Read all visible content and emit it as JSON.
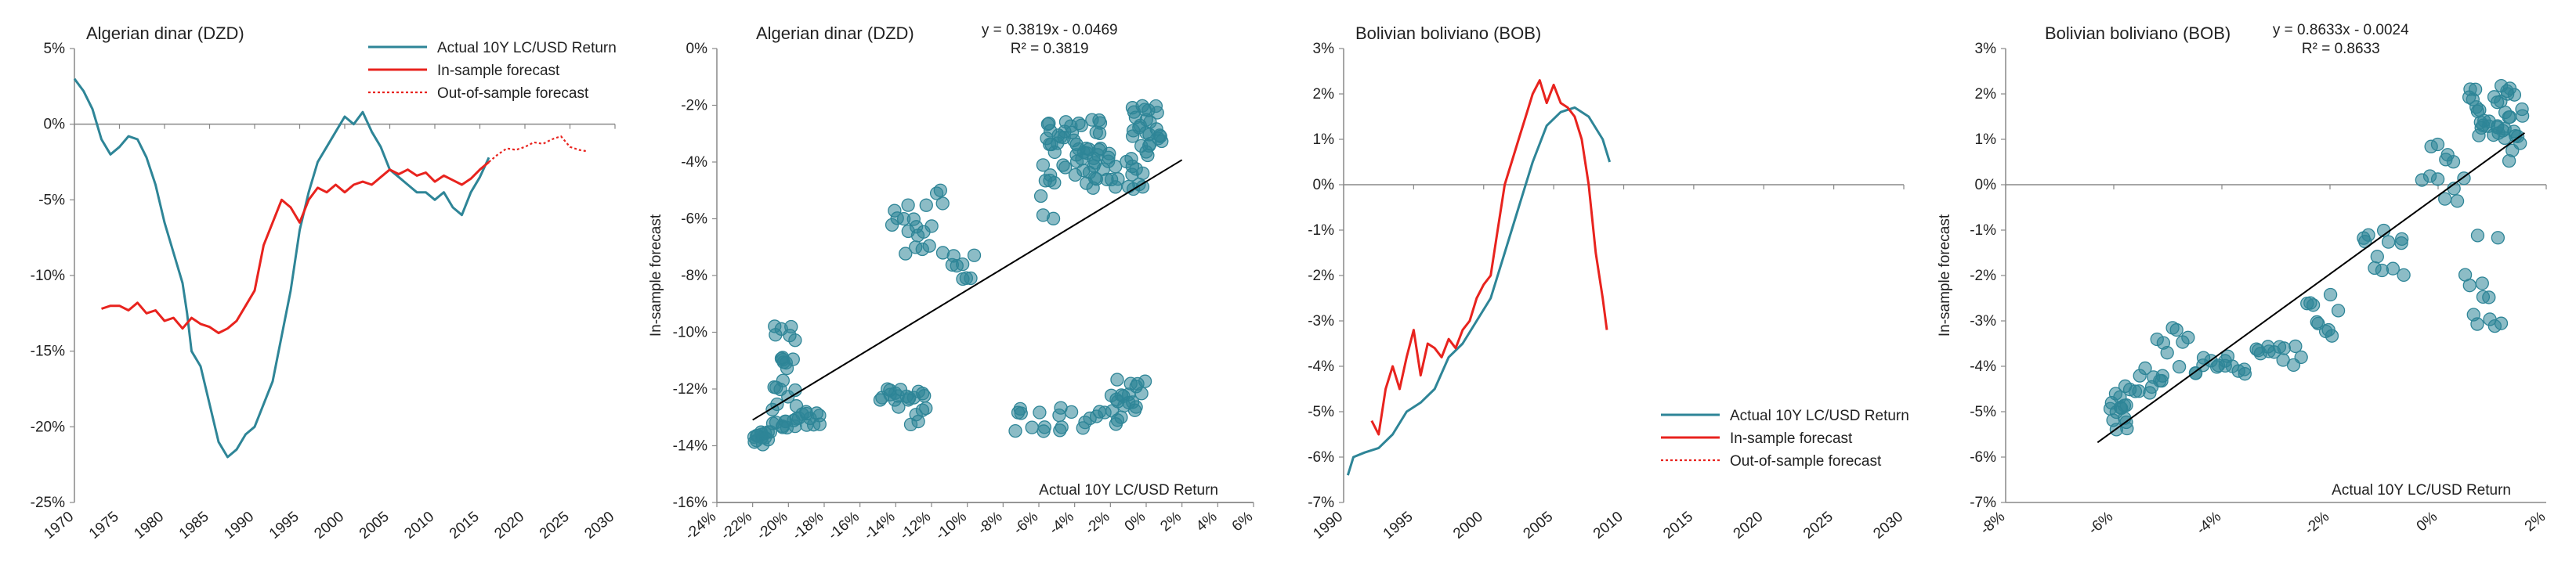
{
  "colors": {
    "actual": "#2e8597",
    "in_sample": "#e8231e",
    "out_sample": "#e8231e",
    "axis": "#888888",
    "text": "#222222",
    "fit": "#000000"
  },
  "chart_data": [
    {
      "type": "line",
      "title": "Algerian dinar (DZD)",
      "xlim": [
        1970,
        2030
      ],
      "ylim": [
        -25,
        5
      ],
      "xticks": [
        "1970",
        "1975",
        "1980",
        "1985",
        "1990",
        "1995",
        "2000",
        "2005",
        "2010",
        "2015",
        "2020",
        "2025",
        "2030"
      ],
      "yticks": [
        "5%",
        "0%",
        "-5%",
        "-10%",
        "-15%",
        "-20%",
        "-25%"
      ],
      "legend": [
        "Actual 10Y LC/USD Return",
        "In-sample forecast",
        "Out-of-sample forecast"
      ],
      "series": [
        {
          "name": "Actual 10Y LC/USD Return",
          "style": "actual",
          "points": [
            [
              1970,
              3.0
            ],
            [
              1971,
              2.2
            ],
            [
              1972,
              1.0
            ],
            [
              1973,
              -1.0
            ],
            [
              1974,
              -2.0
            ],
            [
              1975,
              -1.5
            ],
            [
              1976,
              -0.8
            ],
            [
              1977,
              -1.0
            ],
            [
              1978,
              -2.2
            ],
            [
              1979,
              -4.0
            ],
            [
              1980,
              -6.5
            ],
            [
              1981,
              -8.5
            ],
            [
              1982,
              -10.5
            ],
            [
              1982.5,
              -12.5
            ],
            [
              1983,
              -15.0
            ],
            [
              1984,
              -16.0
            ],
            [
              1985,
              -18.5
            ],
            [
              1986,
              -21.0
            ],
            [
              1987,
              -22.0
            ],
            [
              1988,
              -21.5
            ],
            [
              1989,
              -20.5
            ],
            [
              1990,
              -20.0
            ],
            [
              1991,
              -18.5
            ],
            [
              1992,
              -17.0
            ],
            [
              1993,
              -14.0
            ],
            [
              1994,
              -11.0
            ],
            [
              1995,
              -7.0
            ],
            [
              1996,
              -4.5
            ],
            [
              1997,
              -2.5
            ],
            [
              1998,
              -1.5
            ],
            [
              1999,
              -0.5
            ],
            [
              2000,
              0.5
            ],
            [
              2001,
              0.0
            ],
            [
              2002,
              0.8
            ],
            [
              2003,
              -0.5
            ],
            [
              2004,
              -1.5
            ],
            [
              2005,
              -3.0
            ],
            [
              2006,
              -3.5
            ],
            [
              2007,
              -4.0
            ],
            [
              2008,
              -4.5
            ],
            [
              2009,
              -4.5
            ],
            [
              2010,
              -5.0
            ],
            [
              2011,
              -4.5
            ],
            [
              2012,
              -5.5
            ],
            [
              2013,
              -6.0
            ],
            [
              2014,
              -4.5
            ],
            [
              2015,
              -3.5
            ],
            [
              2016,
              -2.2
            ]
          ]
        },
        {
          "name": "In-sample forecast",
          "style": "in",
          "points": [
            [
              1973,
              -12.2
            ],
            [
              1974,
              -12.0
            ],
            [
              1975,
              -12.0
            ],
            [
              1976,
              -12.3
            ],
            [
              1977,
              -11.8
            ],
            [
              1978,
              -12.5
            ],
            [
              1979,
              -12.3
            ],
            [
              1980,
              -13.0
            ],
            [
              1981,
              -12.8
            ],
            [
              1982,
              -13.5
            ],
            [
              1983,
              -12.8
            ],
            [
              1984,
              -13.2
            ],
            [
              1985,
              -13.4
            ],
            [
              1986,
              -13.8
            ],
            [
              1987,
              -13.5
            ],
            [
              1988,
              -13.0
            ],
            [
              1989,
              -12.0
            ],
            [
              1990,
              -11.0
            ],
            [
              1991,
              -8.0
            ],
            [
              1992,
              -6.5
            ],
            [
              1993,
              -5.0
            ],
            [
              1994,
              -5.5
            ],
            [
              1995,
              -6.5
            ],
            [
              1996,
              -5.0
            ],
            [
              1997,
              -4.2
            ],
            [
              1998,
              -4.5
            ],
            [
              1999,
              -4.0
            ],
            [
              2000,
              -4.5
            ],
            [
              2001,
              -4.0
            ],
            [
              2002,
              -3.8
            ],
            [
              2003,
              -4.0
            ],
            [
              2004,
              -3.5
            ],
            [
              2005,
              -3.0
            ],
            [
              2006,
              -3.3
            ],
            [
              2007,
              -3.0
            ],
            [
              2008,
              -3.4
            ],
            [
              2009,
              -3.2
            ],
            [
              2010,
              -3.8
            ],
            [
              2011,
              -3.4
            ],
            [
              2012,
              -3.7
            ],
            [
              2013,
              -4.0
            ],
            [
              2014,
              -3.6
            ],
            [
              2015,
              -3.0
            ],
            [
              2016,
              -2.5
            ]
          ]
        },
        {
          "name": "Out-of-sample forecast",
          "style": "out",
          "points": [
            [
              2016,
              -2.5
            ],
            [
              2017,
              -2.0
            ],
            [
              2018,
              -1.6
            ],
            [
              2019,
              -1.7
            ],
            [
              2020,
              -1.5
            ],
            [
              2021,
              -1.2
            ],
            [
              2022,
              -1.3
            ],
            [
              2023,
              -1.0
            ],
            [
              2024,
              -0.8
            ],
            [
              2025,
              -1.5
            ],
            [
              2026,
              -1.7
            ],
            [
              2027,
              -1.8
            ]
          ]
        }
      ]
    },
    {
      "type": "scatter",
      "title": "Algerian dinar (DZD)",
      "equation": "y = 0.3819x - 0.0469",
      "r2": "R² = 0.3819",
      "xlabel": "Actual 10Y LC/USD Return",
      "ylabel": "In-sample forecast",
      "xlim": [
        -24,
        6
      ],
      "ylim": [
        -16,
        0
      ],
      "xticks": [
        "-24%",
        "-22%",
        "-20%",
        "-18%",
        "-16%",
        "-14%",
        "-12%",
        "-10%",
        "-8%",
        "-6%",
        "-4%",
        "-2%",
        "0%",
        "2%",
        "4%",
        "6%"
      ],
      "yticks": [
        "0%",
        "-2%",
        "-4%",
        "-6%",
        "-8%",
        "-10%",
        "-12%",
        "-14%",
        "-16%"
      ],
      "fit": {
        "slope": 0.3819,
        "intercept": -4.69,
        "x_range": [
          -22,
          2
        ]
      },
      "clusters": [
        {
          "x": [
            -22,
            -21
          ],
          "y": [
            -14,
            -13.5
          ],
          "n": 14
        },
        {
          "x": [
            -21,
            -18
          ],
          "y": [
            -13.4,
            -12.8
          ],
          "n": 20
        },
        {
          "x": [
            -21,
            -19.5
          ],
          "y": [
            -12.8,
            -9.5
          ],
          "n": 22
        },
        {
          "x": [
            -15,
            -12
          ],
          "y": [
            -13.3,
            -12
          ],
          "n": 22
        },
        {
          "x": [
            -8,
            -1
          ],
          "y": [
            -13.5,
            -12.6
          ],
          "n": 22
        },
        {
          "x": [
            -2,
            0
          ],
          "y": [
            -12.8,
            -11.6
          ],
          "n": 18
        },
        {
          "x": [
            -14.5,
            -11
          ],
          "y": [
            -7.5,
            -4.7
          ],
          "n": 20
        },
        {
          "x": [
            -11,
            -9.5
          ],
          "y": [
            -8.5,
            -7.0
          ],
          "n": 8
        },
        {
          "x": [
            -6,
            -2
          ],
          "y": [
            -4.5,
            -2.5
          ],
          "n": 40
        },
        {
          "x": [
            -4,
            0.5
          ],
          "y": [
            -5.0,
            -3.5
          ],
          "n": 30
        },
        {
          "x": [
            -1,
            1
          ],
          "y": [
            -3.5,
            -2.0
          ],
          "n": 24
        },
        {
          "x": [
            -6,
            -5
          ],
          "y": [
            -6.0,
            -4.5
          ],
          "n": 6
        }
      ]
    },
    {
      "type": "line",
      "title": "Bolivian boliviano (BOB)",
      "xlim": [
        1990,
        2030
      ],
      "ylim": [
        -7,
        3
      ],
      "xticks": [
        "1990",
        "1995",
        "2000",
        "2005",
        "2010",
        "2015",
        "2020",
        "2025",
        "2030"
      ],
      "yticks": [
        "3%",
        "2%",
        "1%",
        "0%",
        "-1%",
        "-2%",
        "-3%",
        "-4%",
        "-5%",
        "-6%",
        "-7%"
      ],
      "legend": [
        "Actual 10Y LC/USD Return",
        "In-sample forecast",
        "Out-of-sample forecast"
      ],
      "series": [
        {
          "name": "Actual 10Y LC/USD Return",
          "style": "actual",
          "points": [
            [
              1990.3,
              -6.4
            ],
            [
              1990.7,
              -6.0
            ],
            [
              1991.5,
              -5.9
            ],
            [
              1992.5,
              -5.8
            ],
            [
              1993.5,
              -5.5
            ],
            [
              1994.5,
              -5.0
            ],
            [
              1995.5,
              -4.8
            ],
            [
              1996.5,
              -4.5
            ],
            [
              1997.5,
              -3.8
            ],
            [
              1998.5,
              -3.5
            ],
            [
              1999.5,
              -3.0
            ],
            [
              2000.5,
              -2.5
            ],
            [
              2001.5,
              -1.5
            ],
            [
              2002.5,
              -0.5
            ],
            [
              2003.5,
              0.5
            ],
            [
              2004.5,
              1.3
            ],
            [
              2005.5,
              1.6
            ],
            [
              2006.5,
              1.7
            ],
            [
              2007.5,
              1.5
            ],
            [
              2008.5,
              1.0
            ],
            [
              2009,
              0.5
            ]
          ]
        },
        {
          "name": "In-sample forecast",
          "style": "in",
          "points": [
            [
              1992,
              -5.2
            ],
            [
              1992.5,
              -5.5
            ],
            [
              1993,
              -4.5
            ],
            [
              1993.5,
              -4.0
            ],
            [
              1994,
              -4.5
            ],
            [
              1994.5,
              -3.8
            ],
            [
              1995,
              -3.2
            ],
            [
              1995.5,
              -4.2
            ],
            [
              1996,
              -3.5
            ],
            [
              1996.5,
              -3.6
            ],
            [
              1997,
              -3.8
            ],
            [
              1997.5,
              -3.4
            ],
            [
              1998,
              -3.6
            ],
            [
              1998.5,
              -3.2
            ],
            [
              1999,
              -3.0
            ],
            [
              1999.5,
              -2.5
            ],
            [
              2000,
              -2.2
            ],
            [
              2000.5,
              -2.0
            ],
            [
              2001,
              -1.0
            ],
            [
              2001.5,
              0.0
            ],
            [
              2002,
              0.5
            ],
            [
              2002.5,
              1.0
            ],
            [
              2003,
              1.5
            ],
            [
              2003.5,
              2.0
            ],
            [
              2004,
              2.3
            ],
            [
              2004.5,
              1.8
            ],
            [
              2005,
              2.2
            ],
            [
              2005.5,
              1.8
            ],
            [
              2006,
              1.7
            ],
            [
              2006.5,
              1.5
            ],
            [
              2007,
              1.0
            ],
            [
              2007.5,
              0.0
            ],
            [
              2008,
              -1.5
            ],
            [
              2008.5,
              -2.5
            ],
            [
              2008.8,
              -3.2
            ]
          ]
        }
      ],
      "legend_position": "bottom-right"
    },
    {
      "type": "scatter",
      "title": "Bolivian boliviano (BOB)",
      "equation": "y = 0.8633x - 0.0024",
      "r2": "R² = 0.8633",
      "xlabel": "Actual 10Y LC/USD Return",
      "ylabel": "In-sample forecast",
      "xlim": [
        -8,
        2
      ],
      "ylim": [
        -7,
        3
      ],
      "xticks": [
        "-8%",
        "-6%",
        "-4%",
        "-2%",
        "0%",
        "2%"
      ],
      "yticks": [
        "3%",
        "2%",
        "1%",
        "0%",
        "-1%",
        "-2%",
        "-3%",
        "-4%",
        "-5%",
        "-6%",
        "-7%"
      ],
      "fit": {
        "slope": 0.8633,
        "intercept": -0.24,
        "x_range": [
          -6.3,
          1.6
        ]
      },
      "clusters": [
        {
          "x": [
            -6.1,
            -5.7
          ],
          "y": [
            -5.5,
            -4.6
          ],
          "n": 14
        },
        {
          "x": [
            -5.8,
            -5.0
          ],
          "y": [
            -4.7,
            -4.0
          ],
          "n": 12
        },
        {
          "x": [
            -5.2,
            -4.6
          ],
          "y": [
            -4.1,
            -3.1
          ],
          "n": 8
        },
        {
          "x": [
            -4.6,
            -3.5
          ],
          "y": [
            -4.2,
            -3.7
          ],
          "n": 14
        },
        {
          "x": [
            -3.5,
            -2.5
          ],
          "y": [
            -4.0,
            -3.5
          ],
          "n": 12
        },
        {
          "x": [
            -2.5,
            -1.8
          ],
          "y": [
            -3.5,
            -2.4
          ],
          "n": 10
        },
        {
          "x": [
            -1.5,
            -0.5
          ],
          "y": [
            -2.5,
            -1.0
          ],
          "n": 12
        },
        {
          "x": [
            -0.3,
            0.5
          ],
          "y": [
            -0.5,
            1.0
          ],
          "n": 12
        },
        {
          "x": [
            0.5,
            1.5
          ],
          "y": [
            1.0,
            2.2
          ],
          "n": 30
        },
        {
          "x": [
            0.5,
            1.2
          ],
          "y": [
            -3.2,
            -1.0
          ],
          "n": 12
        },
        {
          "x": [
            1.2,
            1.6
          ],
          "y": [
            0.5,
            1.8
          ],
          "n": 10
        }
      ]
    }
  ]
}
